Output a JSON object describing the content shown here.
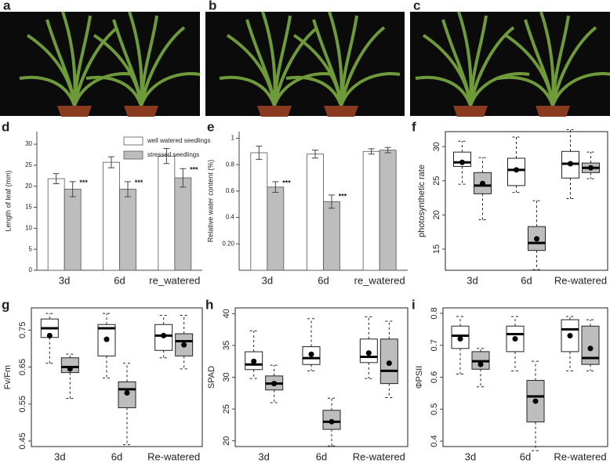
{
  "photos": [
    {
      "label": "a"
    },
    {
      "label": "b"
    },
    {
      "label": "c"
    }
  ],
  "chart_data": [
    {
      "label": "d",
      "type": "bar",
      "ylabel": "Length of leaf (mm)",
      "categories": [
        "3d",
        "6d",
        "re_watered"
      ],
      "ylim": [
        0,
        33
      ],
      "yticks": [
        0,
        5,
        10,
        15,
        20,
        25,
        30
      ],
      "legend": "top-right",
      "series": [
        {
          "name": "well watered seedlings",
          "color": "#ffffff",
          "values": [
            21.8,
            25.7,
            27.2
          ],
          "errors": [
            1.2,
            1.3,
            1.8
          ],
          "significance": [
            null,
            null,
            null
          ]
        },
        {
          "name": "stressed seedlings",
          "color": "#bdbdbd",
          "values": [
            19.3,
            19.3,
            22.0
          ],
          "errors": [
            1.8,
            1.8,
            2.2
          ],
          "significance": [
            "***",
            "***",
            "***"
          ]
        }
      ]
    },
    {
      "label": "e",
      "type": "bar",
      "ylabel": "Relative water content (%)",
      "categories": [
        "3d",
        "6d",
        "re_watered"
      ],
      "ylim": [
        0,
        1.05
      ],
      "yticks": [
        {
          "value": 0.2,
          "label": "0.20"
        },
        0.4,
        0.6,
        0.8,
        1
      ],
      "series": [
        {
          "color": "#ffffff",
          "values": [
            0.89,
            0.88,
            0.9
          ],
          "errors": [
            0.05,
            0.03,
            0.02
          ],
          "significance": [
            null,
            null,
            null
          ]
        },
        {
          "color": "#bdbdbd",
          "values": [
            0.63,
            0.52,
            0.91
          ],
          "errors": [
            0.04,
            0.05,
            0.02
          ],
          "significance": [
            "***",
            "***",
            null
          ]
        }
      ]
    },
    {
      "label": "f",
      "type": "box",
      "ylabel": "photosynthetic rate",
      "categories": [
        "3d",
        "6d",
        "Re-watered"
      ],
      "ylim": [
        11.9,
        32.2
      ],
      "yticks": [
        15,
        20,
        25,
        30
      ],
      "series": [
        {
          "color": "#ffffff",
          "boxes": [
            {
              "min": 24.5,
              "q1": 27.1,
              "median": 27.7,
              "q3": 29.2,
              "max": 30.8,
              "mean": 27.7
            },
            {
              "min": 23.3,
              "q1": 24.3,
              "median": 26.6,
              "q3": 28.3,
              "max": 31.4,
              "mean": 26.6
            },
            {
              "min": 22.4,
              "q1": 25.4,
              "median": 27.5,
              "q3": 29.3,
              "max": 32.5,
              "mean": 27.5
            }
          ]
        },
        {
          "color": "#bdbdbd",
          "boxes": [
            {
              "min": 19.3,
              "q1": 23.1,
              "median": 24.3,
              "q3": 26.2,
              "max": 28.4,
              "mean": 24.6
            },
            {
              "min": 12.0,
              "q1": 14.8,
              "median": 15.9,
              "q3": 18.3,
              "max": 22.1,
              "mean": 16.5
            },
            {
              "min": 25.3,
              "q1": 26.2,
              "median": 26.9,
              "q3": 27.6,
              "max": 29.2,
              "mean": 26.9
            }
          ]
        }
      ]
    },
    {
      "label": "g",
      "type": "box",
      "ylabel": "Fv/Fm",
      "categories": [
        "3d",
        "6d",
        "Re-watered"
      ],
      "ylim": [
        0.435,
        0.81
      ],
      "yticks": [
        0.45,
        0.55,
        0.65,
        0.75
      ],
      "series": [
        {
          "color": "#ffffff",
          "boxes": [
            {
              "min": 0.66,
              "q1": 0.73,
              "median": 0.755,
              "q3": 0.78,
              "max": 0.795,
              "mean": 0.735
            },
            {
              "min": 0.62,
              "q1": 0.68,
              "median": 0.755,
              "q3": 0.765,
              "max": 0.795,
              "mean": 0.725
            },
            {
              "min": 0.675,
              "q1": 0.695,
              "median": 0.735,
              "q3": 0.765,
              "max": 0.79,
              "mean": 0.735
            }
          ]
        },
        {
          "color": "#bdbdbd",
          "boxes": [
            {
              "min": 0.565,
              "q1": 0.635,
              "median": 0.65,
              "q3": 0.675,
              "max": 0.685,
              "mean": 0.645
            },
            {
              "min": 0.44,
              "q1": 0.54,
              "median": 0.59,
              "q3": 0.61,
              "max": 0.66,
              "mean": 0.58
            },
            {
              "min": 0.645,
              "q1": 0.68,
              "median": 0.72,
              "q3": 0.74,
              "max": 0.79,
              "mean": 0.71
            }
          ]
        }
      ]
    },
    {
      "label": "h",
      "type": "box",
      "ylabel": "SPAD",
      "categories": [
        "3d",
        "6d",
        "Re-watered"
      ],
      "ylim": [
        19.1,
        40.9
      ],
      "yticks": [
        20,
        25,
        30,
        35,
        40
      ],
      "series": [
        {
          "color": "#ffffff",
          "boxes": [
            {
              "min": 29.8,
              "q1": 31.2,
              "median": 32.0,
              "q3": 34.0,
              "max": 37.3,
              "mean": 32.5
            },
            {
              "min": 31.0,
              "q1": 32.0,
              "median": 33.0,
              "q3": 34.8,
              "max": 39.2,
              "mean": 33.6
            },
            {
              "min": 29.8,
              "q1": 32.3,
              "median": 33.2,
              "q3": 36.0,
              "max": 39.5,
              "mean": 33.8
            }
          ]
        },
        {
          "color": "#bdbdbd",
          "boxes": [
            {
              "min": 26.0,
              "q1": 28.0,
              "median": 29.0,
              "q3": 30.2,
              "max": 31.9,
              "mean": 29.0
            },
            {
              "min": 19.2,
              "q1": 21.8,
              "median": 23.0,
              "q3": 24.8,
              "max": 26.7,
              "mean": 23.0
            },
            {
              "min": 26.8,
              "q1": 29.0,
              "median": 31.0,
              "q3": 36.0,
              "max": 38.8,
              "mean": 32.2
            }
          ]
        }
      ]
    },
    {
      "label": "i",
      "type": "box",
      "ylabel": "ΦPSII",
      "categories": [
        "3d",
        "6d",
        "Re-watered"
      ],
      "ylim": [
        0.383,
        0.817
      ],
      "yticks": [
        0.4,
        0.5,
        0.6,
        0.7,
        0.8
      ],
      "series": [
        {
          "color": "#ffffff",
          "boxes": [
            {
              "min": 0.61,
              "q1": 0.69,
              "median": 0.73,
              "q3": 0.76,
              "max": 0.79,
              "mean": 0.72
            },
            {
              "min": 0.62,
              "q1": 0.68,
              "median": 0.735,
              "q3": 0.76,
              "max": 0.79,
              "mean": 0.72
            },
            {
              "min": 0.62,
              "q1": 0.68,
              "median": 0.75,
              "q3": 0.78,
              "max": 0.79,
              "mean": 0.73
            }
          ]
        },
        {
          "color": "#bdbdbd",
          "boxes": [
            {
              "min": 0.57,
              "q1": 0.625,
              "median": 0.65,
              "q3": 0.68,
              "max": 0.69,
              "mean": 0.64
            },
            {
              "min": 0.37,
              "q1": 0.46,
              "median": 0.54,
              "q3": 0.59,
              "max": 0.65,
              "mean": 0.525
            },
            {
              "min": 0.62,
              "q1": 0.64,
              "median": 0.66,
              "q3": 0.76,
              "max": 0.78,
              "mean": 0.69
            }
          ]
        }
      ]
    }
  ]
}
